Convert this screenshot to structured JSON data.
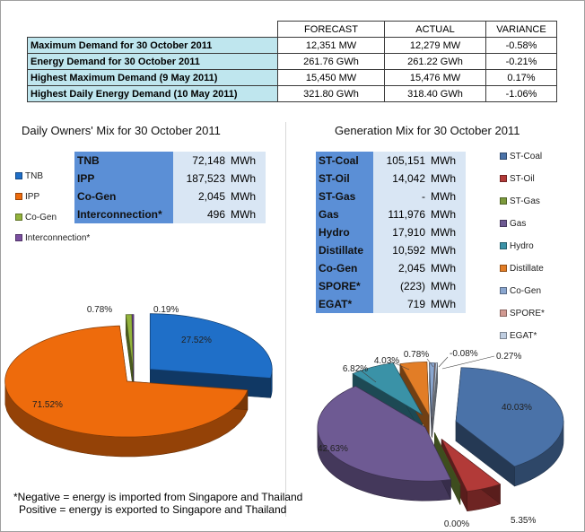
{
  "summary": {
    "headers": [
      "",
      "FORECAST",
      "ACTUAL",
      "VARIANCE"
    ],
    "rows": [
      {
        "label": "Maximum Demand for 30 October 2011",
        "forecast": "12,351 MW",
        "actual": "12,279 MW",
        "variance": "-0.58%"
      },
      {
        "label": "Energy Demand for 30 October 2011",
        "forecast": "261.76 GWh",
        "actual": "261.22 GWh",
        "variance": "-0.21%"
      },
      {
        "label": "Highest Maximum Demand (9 May 2011)",
        "forecast": "15,450 MW",
        "actual": "15,476 MW",
        "variance": "0.17%"
      },
      {
        "label": "Highest Daily Energy Demand (10 May 2011)",
        "forecast": "321.80 GWh",
        "actual": "318.40 GWh",
        "variance": "-1.06%"
      }
    ]
  },
  "owners": {
    "title": "Daily Owners' Mix for 30 October 2011",
    "unit": "MWh",
    "table": [
      {
        "name": "TNB",
        "value": "72,148"
      },
      {
        "name": "IPP",
        "value": "187,523"
      },
      {
        "name": "Co-Gen",
        "value": "2,045"
      },
      {
        "name": "Interconnection*",
        "value": "496"
      }
    ]
  },
  "generation": {
    "title": "Generation Mix for 30 October 2011",
    "unit": "MWh",
    "table": [
      {
        "name": "ST-Coal",
        "value": "105,151"
      },
      {
        "name": "ST-Oil",
        "value": "14,042"
      },
      {
        "name": "ST-Gas",
        "value": "-"
      },
      {
        "name": "Gas",
        "value": "111,976"
      },
      {
        "name": "Hydro",
        "value": "17,910"
      },
      {
        "name": "Distillate",
        "value": "10,592"
      },
      {
        "name": "Co-Gen",
        "value": "2,045"
      },
      {
        "name": "SPORE*",
        "value": "(223)"
      },
      {
        "name": "EGAT*",
        "value": "719"
      }
    ]
  },
  "chart_data": [
    {
      "type": "pie",
      "categories": [
        "TNB",
        "IPP",
        "Co-Gen",
        "Interconnection*"
      ],
      "values": [
        27.52,
        71.52,
        0.78,
        0.19
      ],
      "labels": [
        "27.52%",
        "71.52%",
        "0.78%",
        "0.19%"
      ],
      "colors": [
        "#1f6fc8",
        "#ee6b0c",
        "#93b33c",
        "#7b4fa0"
      ],
      "legend": "left"
    },
    {
      "type": "pie",
      "categories": [
        "ST-Coal",
        "ST-Oil",
        "ST-Gas",
        "Gas",
        "Hydro",
        "Distillate",
        "Co-Gen",
        "SPORE*",
        "EGAT*"
      ],
      "values": [
        40.03,
        5.35,
        0.0,
        42.63,
        6.82,
        4.03,
        0.78,
        -0.08,
        0.27
      ],
      "labels": [
        "40.03%",
        "5.35%",
        "0.00%",
        "42.63%",
        "6.82%",
        "4.03%",
        "0.78%",
        "-0.08%",
        "0.27%"
      ],
      "colors": [
        "#4a72a8",
        "#b23a38",
        "#7c9a3c",
        "#6e5a93",
        "#3a92a7",
        "#e27d26",
        "#8aa6cf",
        "#d29a92",
        "#bfcde0"
      ],
      "legend": "right"
    }
  ],
  "note": {
    "line1": "*Negative = energy is imported from Singapore and Thailand",
    "line2": "Positive = energy is exported to Singapore and Thailand"
  }
}
